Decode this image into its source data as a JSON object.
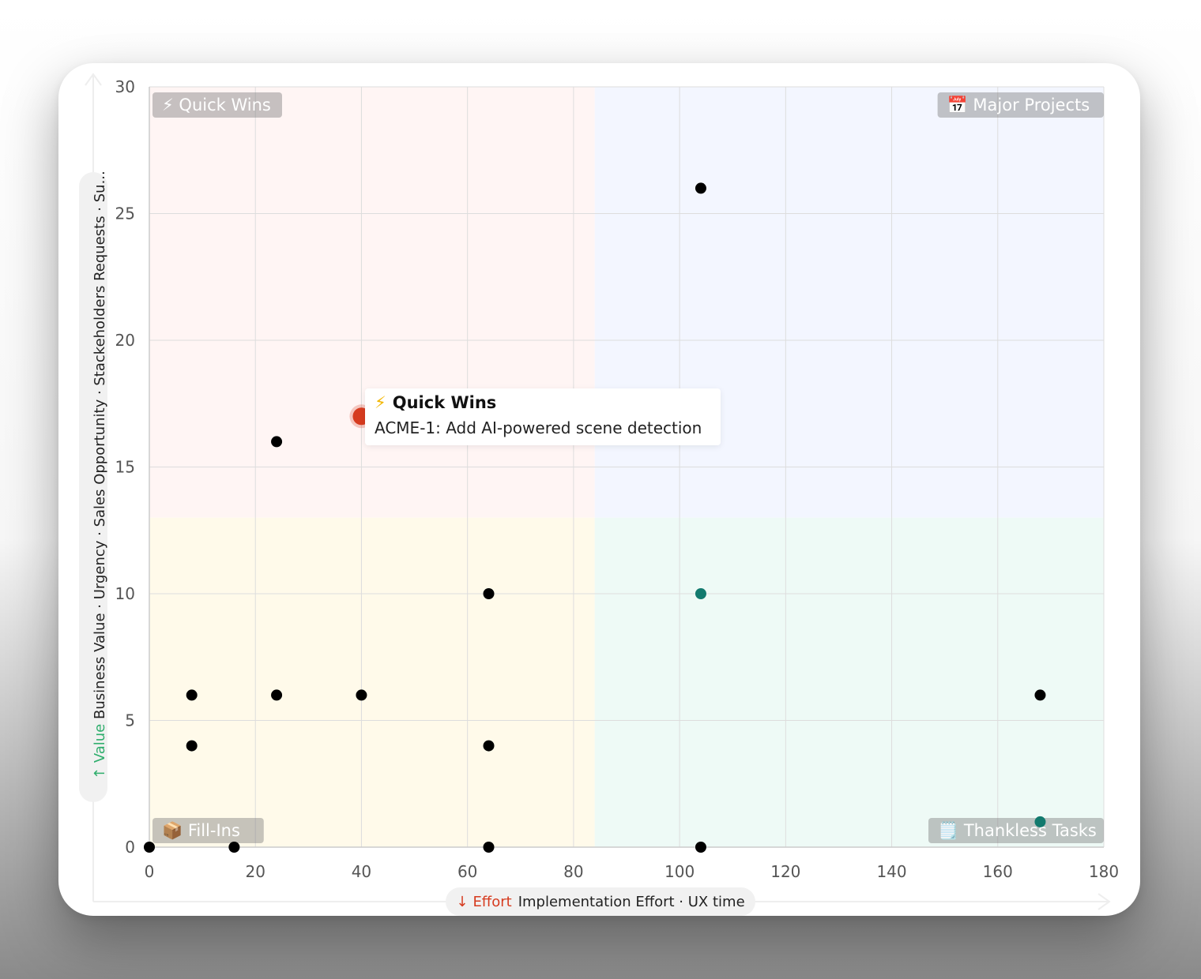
{
  "chart_data": {
    "type": "scatter",
    "xlim": [
      0,
      180
    ],
    "ylim": [
      0,
      30
    ],
    "x_ticks": [
      0,
      20,
      40,
      60,
      80,
      100,
      120,
      140,
      160,
      180
    ],
    "y_ticks": [
      0,
      5,
      10,
      15,
      20,
      25,
      30
    ],
    "grid": true,
    "quadrant_split": {
      "x": 84,
      "y": 13
    },
    "quadrants": [
      {
        "name": "Quick Wins",
        "icon": "⚡",
        "position": "top-left",
        "color": "#fff5f4"
      },
      {
        "name": "Major Projects",
        "icon": "📅",
        "position": "top-right",
        "color": "#f3f6ff"
      },
      {
        "name": "Fill-Ins",
        "icon": "📦",
        "position": "bottom-left",
        "color": "#fffaea"
      },
      {
        "name": "Thankless Tasks",
        "icon": "🗒️",
        "position": "bottom-right",
        "color": "#eefaf6"
      }
    ],
    "points": [
      {
        "x": 0,
        "y": 0,
        "color": "#000000"
      },
      {
        "x": 16,
        "y": 0,
        "color": "#000000"
      },
      {
        "x": 64,
        "y": 0,
        "color": "#000000"
      },
      {
        "x": 104,
        "y": 0,
        "color": "#000000"
      },
      {
        "x": 8,
        "y": 4,
        "color": "#000000"
      },
      {
        "x": 64,
        "y": 4,
        "color": "#000000"
      },
      {
        "x": 8,
        "y": 6,
        "color": "#000000"
      },
      {
        "x": 24,
        "y": 6,
        "color": "#000000"
      },
      {
        "x": 40,
        "y": 6,
        "color": "#000000"
      },
      {
        "x": 168,
        "y": 6,
        "color": "#000000"
      },
      {
        "x": 64,
        "y": 10,
        "color": "#000000"
      },
      {
        "x": 104,
        "y": 10,
        "color": "#127a6e"
      },
      {
        "x": 168,
        "y": 1,
        "color": "#127a6e"
      },
      {
        "x": 24,
        "y": 16,
        "color": "#000000"
      },
      {
        "x": 104,
        "y": 26,
        "color": "#000000"
      },
      {
        "x": 40,
        "y": 17,
        "color": "#d63b1f",
        "highlighted": true
      }
    ],
    "x_axis": {
      "prefix": "Effort",
      "label": "Implementation Effort · UX time",
      "arrow": "↓"
    },
    "y_axis": {
      "prefix": "Value",
      "label": "Business Value · Urgency · Sales Opportunity · Stackeholders Requests · Su...",
      "arrow": "↑"
    },
    "tooltip": {
      "icon": "⚡",
      "title": "Quick Wins",
      "text": "ACME-1: Add AI-powered scene detection"
    }
  }
}
